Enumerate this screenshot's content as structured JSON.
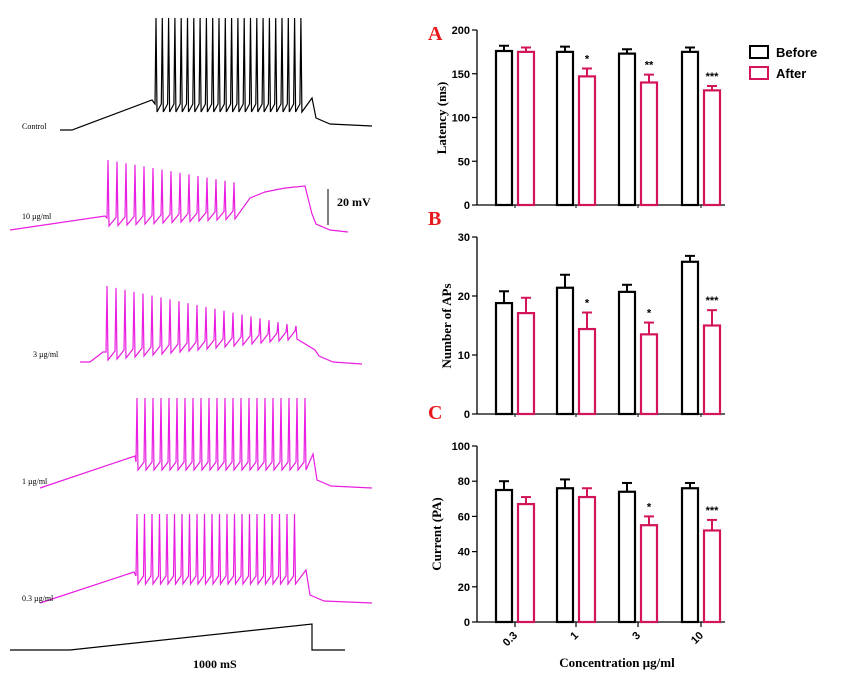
{
  "traces": {
    "labels": [
      "Control",
      "10 µg/ml",
      "3 µg/ml",
      "1 µg/ml",
      "0.3 µg/ml"
    ],
    "colors": [
      "#000000",
      "#e91ee0",
      "#e91ee0",
      "#e91ee0",
      "#e91ee0"
    ],
    "scale_voltage": "20 mV",
    "scale_time": "1000 mS"
  },
  "legend": {
    "before": "Before",
    "after": "After",
    "before_color": "#000000",
    "after_color": "#d4145a"
  },
  "chart_data": [
    {
      "type": "bar",
      "panel": "A",
      "categories": [
        "0.3",
        "1",
        "3",
        "10"
      ],
      "series": [
        {
          "name": "Before",
          "values": [
            176,
            175,
            173,
            175
          ],
          "errors": [
            6,
            6,
            5,
            5
          ]
        },
        {
          "name": "After",
          "values": [
            175,
            147,
            140,
            131
          ],
          "errors": [
            5,
            9,
            9,
            5
          ]
        }
      ],
      "significance": [
        "",
        "*",
        "**",
        "***"
      ],
      "ylabel": "Latency (ms)",
      "ylim": [
        0,
        200
      ],
      "yticks": [
        0,
        50,
        100,
        150,
        200
      ]
    },
    {
      "type": "bar",
      "panel": "B",
      "categories": [
        "0.3",
        "1",
        "3",
        "10"
      ],
      "series": [
        {
          "name": "Before",
          "values": [
            18.8,
            21.4,
            20.7,
            25.8
          ],
          "errors": [
            2.0,
            2.2,
            1.2,
            1.0
          ]
        },
        {
          "name": "After",
          "values": [
            17.1,
            14.4,
            13.5,
            15.0
          ],
          "errors": [
            2.6,
            2.8,
            2.0,
            2.6
          ]
        }
      ],
      "significance": [
        "",
        "*",
        "*",
        "***"
      ],
      "ylabel": "Number of APs",
      "ylim": [
        0,
        30
      ],
      "yticks": [
        0,
        10,
        20,
        30
      ]
    },
    {
      "type": "bar",
      "panel": "C",
      "categories": [
        "0.3",
        "1",
        "3",
        "10"
      ],
      "series": [
        {
          "name": "Before",
          "values": [
            75,
            76,
            74,
            76
          ],
          "errors": [
            5,
            5,
            5,
            3
          ]
        },
        {
          "name": "After",
          "values": [
            67,
            71,
            55,
            52
          ],
          "errors": [
            4,
            5,
            5,
            6
          ]
        }
      ],
      "significance": [
        "",
        "",
        "*",
        "***"
      ],
      "ylabel": "Current (PA)",
      "xlabel": "Concentration µg/ml",
      "ylim": [
        0,
        100
      ],
      "yticks": [
        0,
        20,
        40,
        60,
        80,
        100
      ]
    }
  ]
}
